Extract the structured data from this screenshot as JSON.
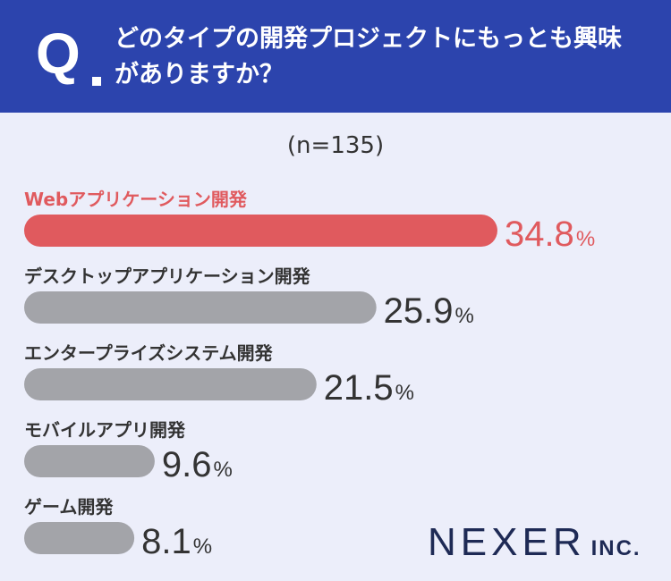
{
  "header": {
    "q_mark": "Q",
    "question": "どのタイプの開発プロジェクトにもっとも興味がありますか？"
  },
  "sample_size": "(n=135)",
  "colors": {
    "highlight": "#e05a5e",
    "bar_gray": "#a3a4a9",
    "header_bg": "#2c44ad",
    "text_dark": "#333333"
  },
  "chart_data": {
    "type": "bar",
    "orientation": "horizontal",
    "categories": [
      "Webアプリケーション開発",
      "デスクトップアプリケーション開発",
      "エンタープライズシステム開発",
      "モバイルアプリ開発",
      "ゲーム開発"
    ],
    "values": [
      34.8,
      25.9,
      21.5,
      9.6,
      8.1
    ],
    "unit": "%",
    "highlight_index": 0
  },
  "logo": {
    "main": "NEXER",
    "suffix": "INC."
  }
}
